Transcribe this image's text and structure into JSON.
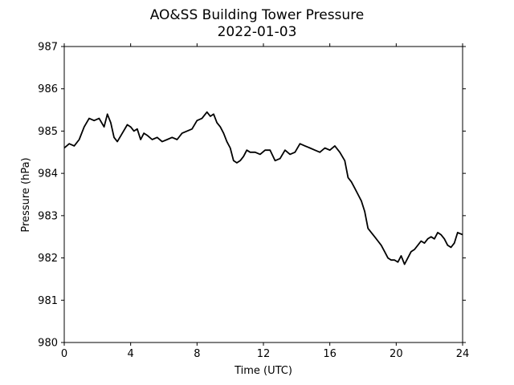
{
  "chart_data": {
    "type": "line",
    "title": "AO&SS Building Tower Pressure",
    "subtitle": "2022-01-03",
    "xlabel": "Time (UTC)",
    "ylabel": "Pressure (hPa)",
    "xlim": [
      0,
      24
    ],
    "ylim": [
      980,
      987
    ],
    "xticks": [
      0,
      4,
      8,
      12,
      16,
      20,
      24
    ],
    "yticks": [
      980,
      981,
      982,
      983,
      984,
      985,
      986,
      987
    ],
    "grid": false,
    "line_color": "#000000",
    "series": [
      {
        "x": [
          0,
          0.3,
          0.6,
          0.9,
          1.2,
          1.5,
          1.8,
          2.1,
          2.4,
          2.6,
          2.8,
          3.0,
          3.2,
          3.5,
          3.8,
          4.0,
          4.2,
          4.4,
          4.6,
          4.8,
          5.0,
          5.3,
          5.6,
          5.9,
          6.2,
          6.5,
          6.8,
          7.1,
          7.4,
          7.7,
          8.0,
          8.3,
          8.6,
          8.8,
          9.0,
          9.2,
          9.4,
          9.6,
          9.8,
          10.0,
          10.2,
          10.4,
          10.6,
          10.8,
          11.0,
          11.2,
          11.5,
          11.8,
          12.1,
          12.4,
          12.7,
          13.0,
          13.3,
          13.6,
          13.9,
          14.2,
          14.5,
          14.8,
          15.1,
          15.4,
          15.7,
          16.0,
          16.3,
          16.6,
          16.9,
          17.1,
          17.3,
          17.5,
          17.7,
          17.9,
          18.1,
          18.3,
          18.5,
          18.7,
          18.9,
          19.1,
          19.3,
          19.5,
          19.7,
          19.9,
          20.1,
          20.3,
          20.5,
          20.7,
          20.9,
          21.1,
          21.3,
          21.5,
          21.7,
          21.9,
          22.1,
          22.3,
          22.5,
          22.7,
          22.9,
          23.1,
          23.3,
          23.5,
          23.7,
          24.0
        ],
        "values": [
          984.6,
          984.7,
          984.65,
          984.8,
          985.1,
          985.3,
          985.25,
          985.3,
          985.1,
          985.4,
          985.2,
          984.85,
          984.75,
          984.95,
          985.15,
          985.1,
          985.0,
          985.05,
          984.8,
          984.95,
          984.9,
          984.8,
          984.85,
          984.75,
          984.8,
          984.85,
          984.8,
          984.95,
          985.0,
          985.05,
          985.25,
          985.3,
          985.45,
          985.35,
          985.4,
          985.2,
          985.1,
          984.95,
          984.75,
          984.6,
          984.3,
          984.25,
          984.3,
          984.4,
          984.55,
          984.5,
          984.5,
          984.45,
          984.55,
          984.55,
          984.3,
          984.35,
          984.55,
          984.45,
          984.5,
          984.7,
          984.65,
          984.6,
          984.55,
          984.5,
          984.6,
          984.55,
          984.65,
          984.5,
          984.3,
          983.9,
          983.8,
          983.65,
          983.5,
          983.35,
          983.1,
          982.7,
          982.6,
          982.5,
          982.4,
          982.3,
          982.15,
          982.0,
          981.95,
          981.95,
          981.9,
          982.05,
          981.85,
          982.0,
          982.15,
          982.2,
          982.3,
          982.4,
          982.35,
          982.45,
          982.5,
          982.45,
          982.6,
          982.55,
          982.45,
          982.3,
          982.25,
          982.35,
          982.6,
          982.55
        ]
      }
    ]
  }
}
